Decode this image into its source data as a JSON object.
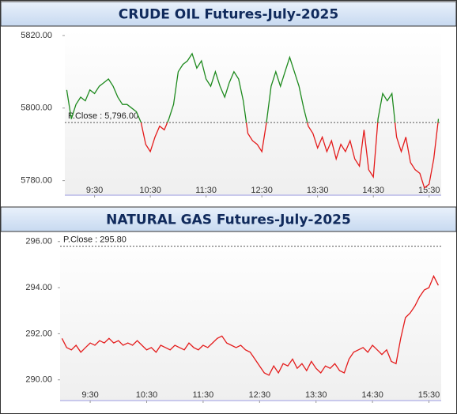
{
  "chart_data": [
    {
      "type": "line",
      "title": "CRUDE OIL Futures-July-2025",
      "x": [
        540,
        545,
        550,
        555,
        560,
        565,
        570,
        575,
        580,
        585,
        590,
        595,
        600,
        605,
        610,
        615,
        620,
        625,
        630,
        635,
        640,
        645,
        650,
        655,
        660,
        665,
        670,
        675,
        680,
        685,
        690,
        695,
        700,
        705,
        710,
        715,
        720,
        725,
        730,
        735,
        740,
        745,
        750,
        755,
        760,
        765,
        770,
        775,
        780,
        785,
        790,
        795,
        800,
        805,
        810,
        815,
        820,
        825,
        830,
        835,
        840,
        845,
        850,
        855,
        860,
        865,
        870,
        875,
        880,
        885,
        890,
        895,
        900,
        905,
        910,
        915,
        920,
        925,
        930,
        935,
        940
      ],
      "values": [
        5805,
        5797,
        5801,
        5803,
        5802,
        5805,
        5804,
        5806,
        5807,
        5808,
        5806,
        5803,
        5801,
        5801,
        5800,
        5799,
        5796,
        5790,
        5788,
        5792,
        5795,
        5794,
        5797,
        5801,
        5810,
        5812,
        5813,
        5815,
        5811,
        5813,
        5808,
        5806,
        5810,
        5806,
        5803,
        5807,
        5810,
        5808,
        5802,
        5793,
        5791,
        5790,
        5788,
        5796,
        5806,
        5810,
        5806,
        5810,
        5814,
        5810,
        5806,
        5800,
        5795,
        5793,
        5789,
        5792,
        5788,
        5791,
        5786,
        5790,
        5788,
        5791,
        5786,
        5784,
        5794,
        5783,
        5781,
        5797,
        5804,
        5802,
        5804,
        5792,
        5788,
        5792,
        5785,
        5783,
        5782,
        5778,
        5779,
        5786,
        5797
      ],
      "xlim": [
        538,
        943
      ],
      "xticks": [
        {
          "value": 570,
          "label": "9:30"
        },
        {
          "value": 630,
          "label": "10:30"
        },
        {
          "value": 690,
          "label": "11:30"
        },
        {
          "value": 750,
          "label": "12:30"
        },
        {
          "value": 810,
          "label": "13:30"
        },
        {
          "value": 870,
          "label": "14:30"
        },
        {
          "value": 930,
          "label": "15:30"
        }
      ],
      "ylim": [
        5776,
        5821.5
      ],
      "yticks": [
        {
          "value": 5780,
          "label": "5780.00"
        },
        {
          "value": 5800,
          "label": "5800.00"
        },
        {
          "value": 5820,
          "label": "5820.00"
        }
      ],
      "prev_close": 5796,
      "prev_close_label": "P.Close : 5,796.00",
      "color_above": "#1e8a1e",
      "color_below": "#e41b1b"
    },
    {
      "type": "line",
      "title": "NATURAL GAS Futures-July-2025",
      "x": [
        540,
        545,
        550,
        555,
        560,
        565,
        570,
        575,
        580,
        585,
        590,
        595,
        600,
        605,
        610,
        615,
        620,
        625,
        630,
        635,
        640,
        645,
        650,
        655,
        660,
        665,
        670,
        675,
        680,
        685,
        690,
        695,
        700,
        705,
        710,
        715,
        720,
        725,
        730,
        735,
        740,
        745,
        750,
        755,
        760,
        765,
        770,
        775,
        780,
        785,
        790,
        795,
        800,
        805,
        810,
        815,
        820,
        825,
        830,
        835,
        840,
        845,
        850,
        855,
        860,
        865,
        870,
        875,
        880,
        885,
        890,
        895,
        900,
        905,
        910,
        915,
        920,
        925,
        930,
        935,
        940
      ],
      "values": [
        291.8,
        291.4,
        291.3,
        291.5,
        291.2,
        291.4,
        291.6,
        291.5,
        291.7,
        291.6,
        291.8,
        291.6,
        291.7,
        291.5,
        291.6,
        291.5,
        291.7,
        291.5,
        291.3,
        291.4,
        291.2,
        291.5,
        291.4,
        291.3,
        291.5,
        291.4,
        291.3,
        291.6,
        291.4,
        291.3,
        291.5,
        291.4,
        291.6,
        291.8,
        291.9,
        291.6,
        291.5,
        291.4,
        291.5,
        291.3,
        291.2,
        290.9,
        290.6,
        290.3,
        290.2,
        290.6,
        290.3,
        290.7,
        290.6,
        290.9,
        290.5,
        290.7,
        290.4,
        290.8,
        290.5,
        290.3,
        290.6,
        290.5,
        290.7,
        290.4,
        290.3,
        290.9,
        291.2,
        291.3,
        291.4,
        291.2,
        291.5,
        291.3,
        291.1,
        291.3,
        290.8,
        290.7,
        291.8,
        292.7,
        292.9,
        293.2,
        293.6,
        293.9,
        294.0,
        294.5,
        294.1
      ],
      "xlim": [
        538,
        943
      ],
      "xticks": [
        {
          "value": 570,
          "label": "9:30"
        },
        {
          "value": 630,
          "label": "10:30"
        },
        {
          "value": 690,
          "label": "11:30"
        },
        {
          "value": 750,
          "label": "12:30"
        },
        {
          "value": 810,
          "label": "13:30"
        },
        {
          "value": 870,
          "label": "14:30"
        },
        {
          "value": 930,
          "label": "15:30"
        }
      ],
      "ylim": [
        289.1,
        296.3
      ],
      "yticks": [
        {
          "value": 290,
          "label": "290.00"
        },
        {
          "value": 292,
          "label": "292.00"
        },
        {
          "value": 294,
          "label": "294.00"
        },
        {
          "value": 296,
          "label": "296.00"
        }
      ],
      "prev_close": 295.8,
      "prev_close_label": "P.Close : 295.80",
      "color_above": "#1e8a1e",
      "color_below": "#e41b1b"
    }
  ]
}
